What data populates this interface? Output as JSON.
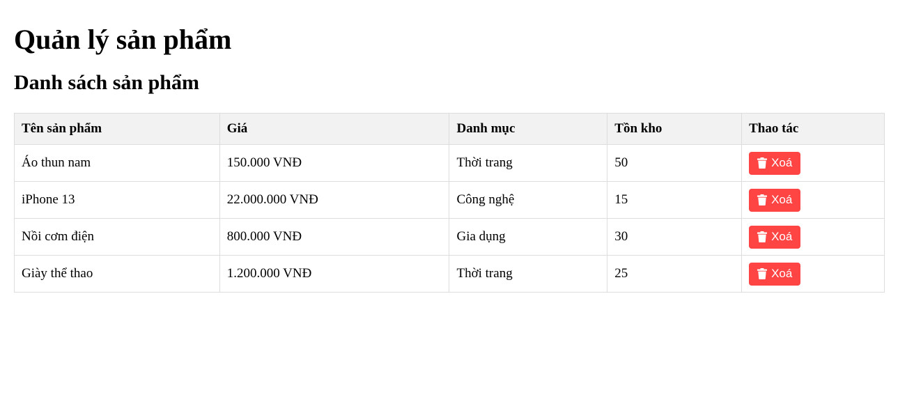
{
  "page": {
    "title": "Quản lý sản phẩm",
    "subtitle": "Danh sách sản phẩm"
  },
  "table": {
    "headers": {
      "name": "Tên sản phẩm",
      "price": "Giá",
      "category": "Danh mục",
      "stock": "Tồn kho",
      "actions": "Thao tác"
    },
    "rows": [
      {
        "name": "Áo thun nam",
        "price": "150.000 VNĐ",
        "category": "Thời trang",
        "stock": "50",
        "delete_label": "Xoá"
      },
      {
        "name": "iPhone 13",
        "price": "22.000.000 VNĐ",
        "category": "Công nghệ",
        "stock": "15",
        "delete_label": "Xoá"
      },
      {
        "name": "Nồi cơm điện",
        "price": "800.000 VNĐ",
        "category": "Gia dụng",
        "stock": "30",
        "delete_label": "Xoá"
      },
      {
        "name": "Giày thể thao",
        "price": "1.200.000 VNĐ",
        "category": "Thời trang",
        "stock": "25",
        "delete_label": "Xoá"
      }
    ]
  },
  "colors": {
    "delete_button": "#ff4444",
    "header_bg": "#f2f2f2",
    "border": "#dddddd"
  },
  "icons": {
    "delete": "trash-icon"
  }
}
